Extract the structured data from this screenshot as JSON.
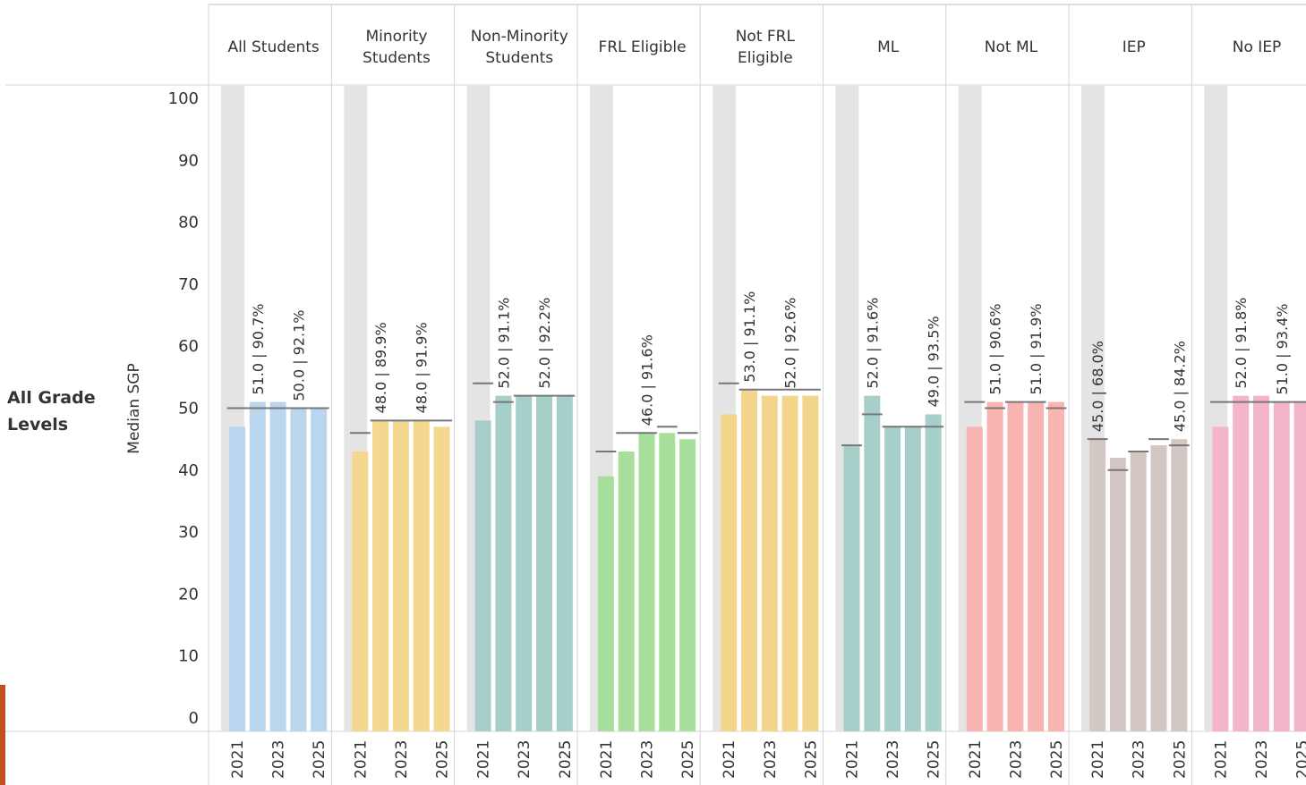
{
  "chart_data": {
    "type": "bar",
    "row_label": "All Grade Levels",
    "ylabel": "Median SGP",
    "ylim": [
      0,
      100
    ],
    "yticks": [
      0,
      10,
      20,
      30,
      40,
      50,
      60,
      70,
      80,
      90,
      100
    ],
    "year_labels": [
      "2021",
      "2023",
      "2025"
    ],
    "bar_years": [
      "2021",
      "2022",
      "2023",
      "2024",
      "2025"
    ],
    "groups": [
      {
        "name": "All Students",
        "header": [
          "All Students"
        ],
        "color": "#b9d6ee",
        "values": [
          47,
          51,
          51,
          50,
          50
        ],
        "refs": [
          50,
          50,
          50,
          50,
          50
        ],
        "labels": [
          null,
          "51.0 | 90.7%",
          null,
          "50.0 | 92.1%",
          null
        ]
      },
      {
        "name": "Minority Students",
        "header": [
          "Minority",
          "Students"
        ],
        "color": "#f4d88f",
        "values": [
          43,
          48,
          48,
          48,
          47
        ],
        "refs": [
          46,
          48,
          48,
          48,
          48
        ],
        "labels": [
          null,
          "48.0 | 89.9%",
          null,
          "48.0 | 91.9%",
          null
        ]
      },
      {
        "name": "Non-Minority Students",
        "header": [
          "Non-Minority",
          "Students"
        ],
        "color": "#a7cfc9",
        "values": [
          48,
          52,
          52,
          52,
          52
        ],
        "refs": [
          54,
          51,
          52,
          52,
          52
        ],
        "labels": [
          null,
          "52.0 | 91.1%",
          null,
          "52.0 | 92.2%",
          null
        ]
      },
      {
        "name": "FRL Eligible",
        "header": [
          "FRL Eligible"
        ],
        "color": "#a9df9c",
        "values": [
          39,
          43,
          46,
          46,
          45
        ],
        "refs": [
          43,
          46,
          46,
          47,
          46
        ],
        "labels": [
          null,
          null,
          "46.0 | 91.6%",
          null,
          null
        ]
      },
      {
        "name": "Not FRL Eligible",
        "header": [
          "Not FRL",
          "Eligible"
        ],
        "color": "#f3d68c",
        "values": [
          49,
          53,
          52,
          52,
          52
        ],
        "refs": [
          54,
          53,
          53,
          53,
          53
        ],
        "labels": [
          null,
          "53.0 | 91.1%",
          null,
          "52.0 | 92.6%",
          null
        ]
      },
      {
        "name": "ML",
        "header": [
          "ML"
        ],
        "color": "#a7cfc9",
        "values": [
          44,
          52,
          47,
          47,
          49
        ],
        "refs": [
          44,
          49,
          47,
          47,
          47
        ],
        "labels": [
          null,
          "52.0 | 91.6%",
          null,
          null,
          "49.0 | 93.5%"
        ]
      },
      {
        "name": "Not ML",
        "header": [
          "Not ML"
        ],
        "color": "#f8b4b1",
        "values": [
          47,
          51,
          51,
          51,
          51
        ],
        "refs": [
          51,
          50,
          51,
          51,
          50
        ],
        "labels": [
          null,
          "51.0 | 90.6%",
          null,
          "51.0 | 91.9%",
          null
        ]
      },
      {
        "name": "IEP",
        "header": [
          "IEP"
        ],
        "color": "#d2c7c2",
        "values": [
          45,
          42,
          43,
          44,
          45
        ],
        "refs": [
          45,
          40,
          43,
          45,
          44
        ],
        "labels": [
          "45.0 | 68.0%",
          null,
          null,
          null,
          "45.0 | 84.2%"
        ]
      },
      {
        "name": "No IEP",
        "header": [
          "No IEP"
        ],
        "color": "#f4b5cb",
        "values": [
          47,
          52,
          52,
          51,
          51
        ],
        "refs": [
          51,
          51,
          51,
          51,
          51
        ],
        "labels": [
          null,
          "52.0 | 91.8%",
          null,
          "51.0 | 93.4%",
          null
        ]
      }
    ]
  }
}
